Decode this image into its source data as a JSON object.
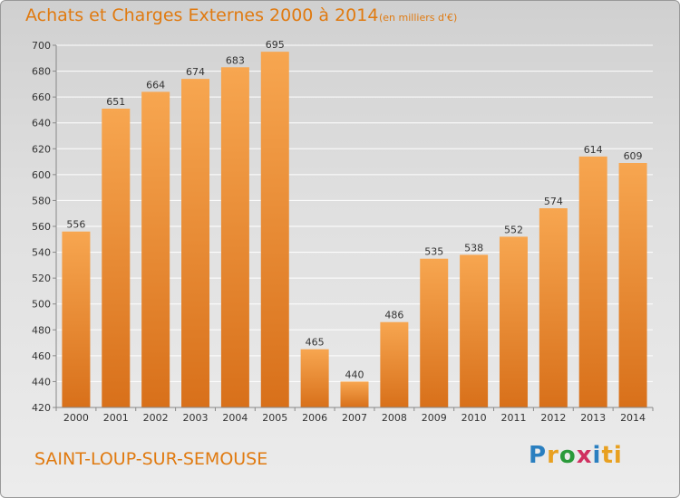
{
  "header": {
    "title": "Achats et Charges Externes 2000 à 2014",
    "unit": "(en milliers d'€)"
  },
  "footer": {
    "commune": "SAINT-LOUP-SUR-SEMOUSE",
    "brand_letters": [
      "P",
      "r",
      "o",
      "x",
      "i",
      "ti"
    ]
  },
  "colors": {
    "bar_top": "#f7a650",
    "bar_bottom": "#d8701a",
    "accent": "#e07a10"
  },
  "chart_data": {
    "type": "bar",
    "categories": [
      "2000",
      "2001",
      "2002",
      "2003",
      "2004",
      "2005",
      "2006",
      "2007",
      "2008",
      "2009",
      "2010",
      "2011",
      "2012",
      "2013",
      "2014"
    ],
    "values": [
      556,
      651,
      664,
      674,
      683,
      695,
      465,
      440,
      486,
      535,
      538,
      552,
      574,
      614,
      609
    ],
    "data_labels": [
      "556",
      "651",
      "664",
      "674",
      "683",
      "695",
      "465",
      "440",
      "486",
      "535",
      "538",
      "552",
      "574",
      "614",
      "609"
    ],
    "title": "Achats et Charges Externes 2000 à 2014",
    "xlabel": "",
    "ylabel": "",
    "ylim": [
      420,
      700
    ],
    "yticks": [
      420,
      440,
      460,
      480,
      500,
      520,
      540,
      560,
      580,
      600,
      620,
      640,
      660,
      680,
      700
    ],
    "ytick_labels": [
      "420",
      "440",
      "460",
      "480",
      "500",
      "520",
      "540",
      "560",
      "580",
      "600",
      "620",
      "640",
      "660",
      "680",
      "700"
    ],
    "grid": true,
    "legend": "none"
  }
}
